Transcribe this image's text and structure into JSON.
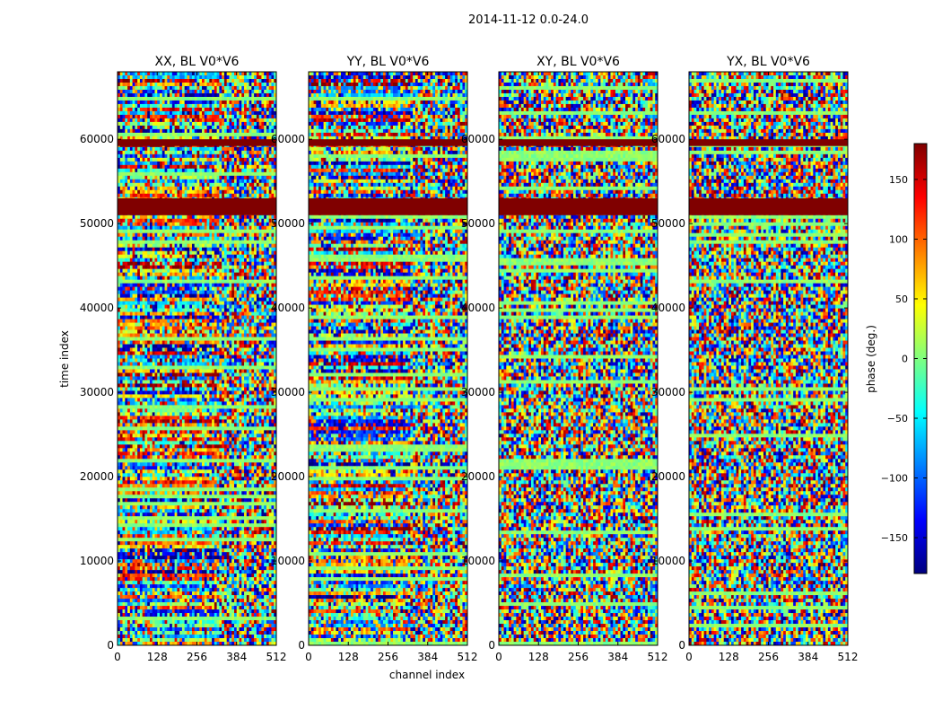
{
  "chart_data": {
    "type": "heatmap",
    "title": "2014-11-12 0.0-24.0",
    "xlabel": "channel index",
    "ylabel": "time index",
    "xlim": [
      0,
      512
    ],
    "ylim": [
      0,
      68000
    ],
    "x_ticks": [
      0,
      128,
      256,
      384,
      512
    ],
    "y_ticks": [
      0,
      10000,
      20000,
      30000,
      40000,
      50000,
      60000
    ],
    "panels": [
      {
        "title": "XX, BL V0*V6",
        "polarization": "XX",
        "baseline": "V0*V6"
      },
      {
        "title": "YY, BL V0*V6",
        "polarization": "YY",
        "baseline": "V0*V6"
      },
      {
        "title": "XY, BL V0*V6",
        "polarization": "XY",
        "baseline": "V0*V6"
      },
      {
        "title": "YX, BL V0*V6",
        "polarization": "YX",
        "baseline": "V0*V6"
      }
    ],
    "colorbar": {
      "label": "phase (deg.)",
      "range": [
        -180,
        180
      ],
      "ticks": [
        -150,
        -100,
        -50,
        0,
        50,
        100,
        150
      ],
      "tick_labels": [
        "−150",
        "−100",
        "−50",
        "0",
        "50",
        "100",
        "150"
      ],
      "colormap": "jet",
      "colors": [
        "#00007f",
        "#0000ff",
        "#007fff",
        "#00ffff",
        "#7fff7f",
        "#ffff00",
        "#ff7f00",
        "#ff0000",
        "#7f0000"
      ]
    },
    "flagged_time_ranges": [
      [
        51000,
        53000
      ],
      [
        59200,
        60000
      ]
    ],
    "flagged_phase": 180
  }
}
